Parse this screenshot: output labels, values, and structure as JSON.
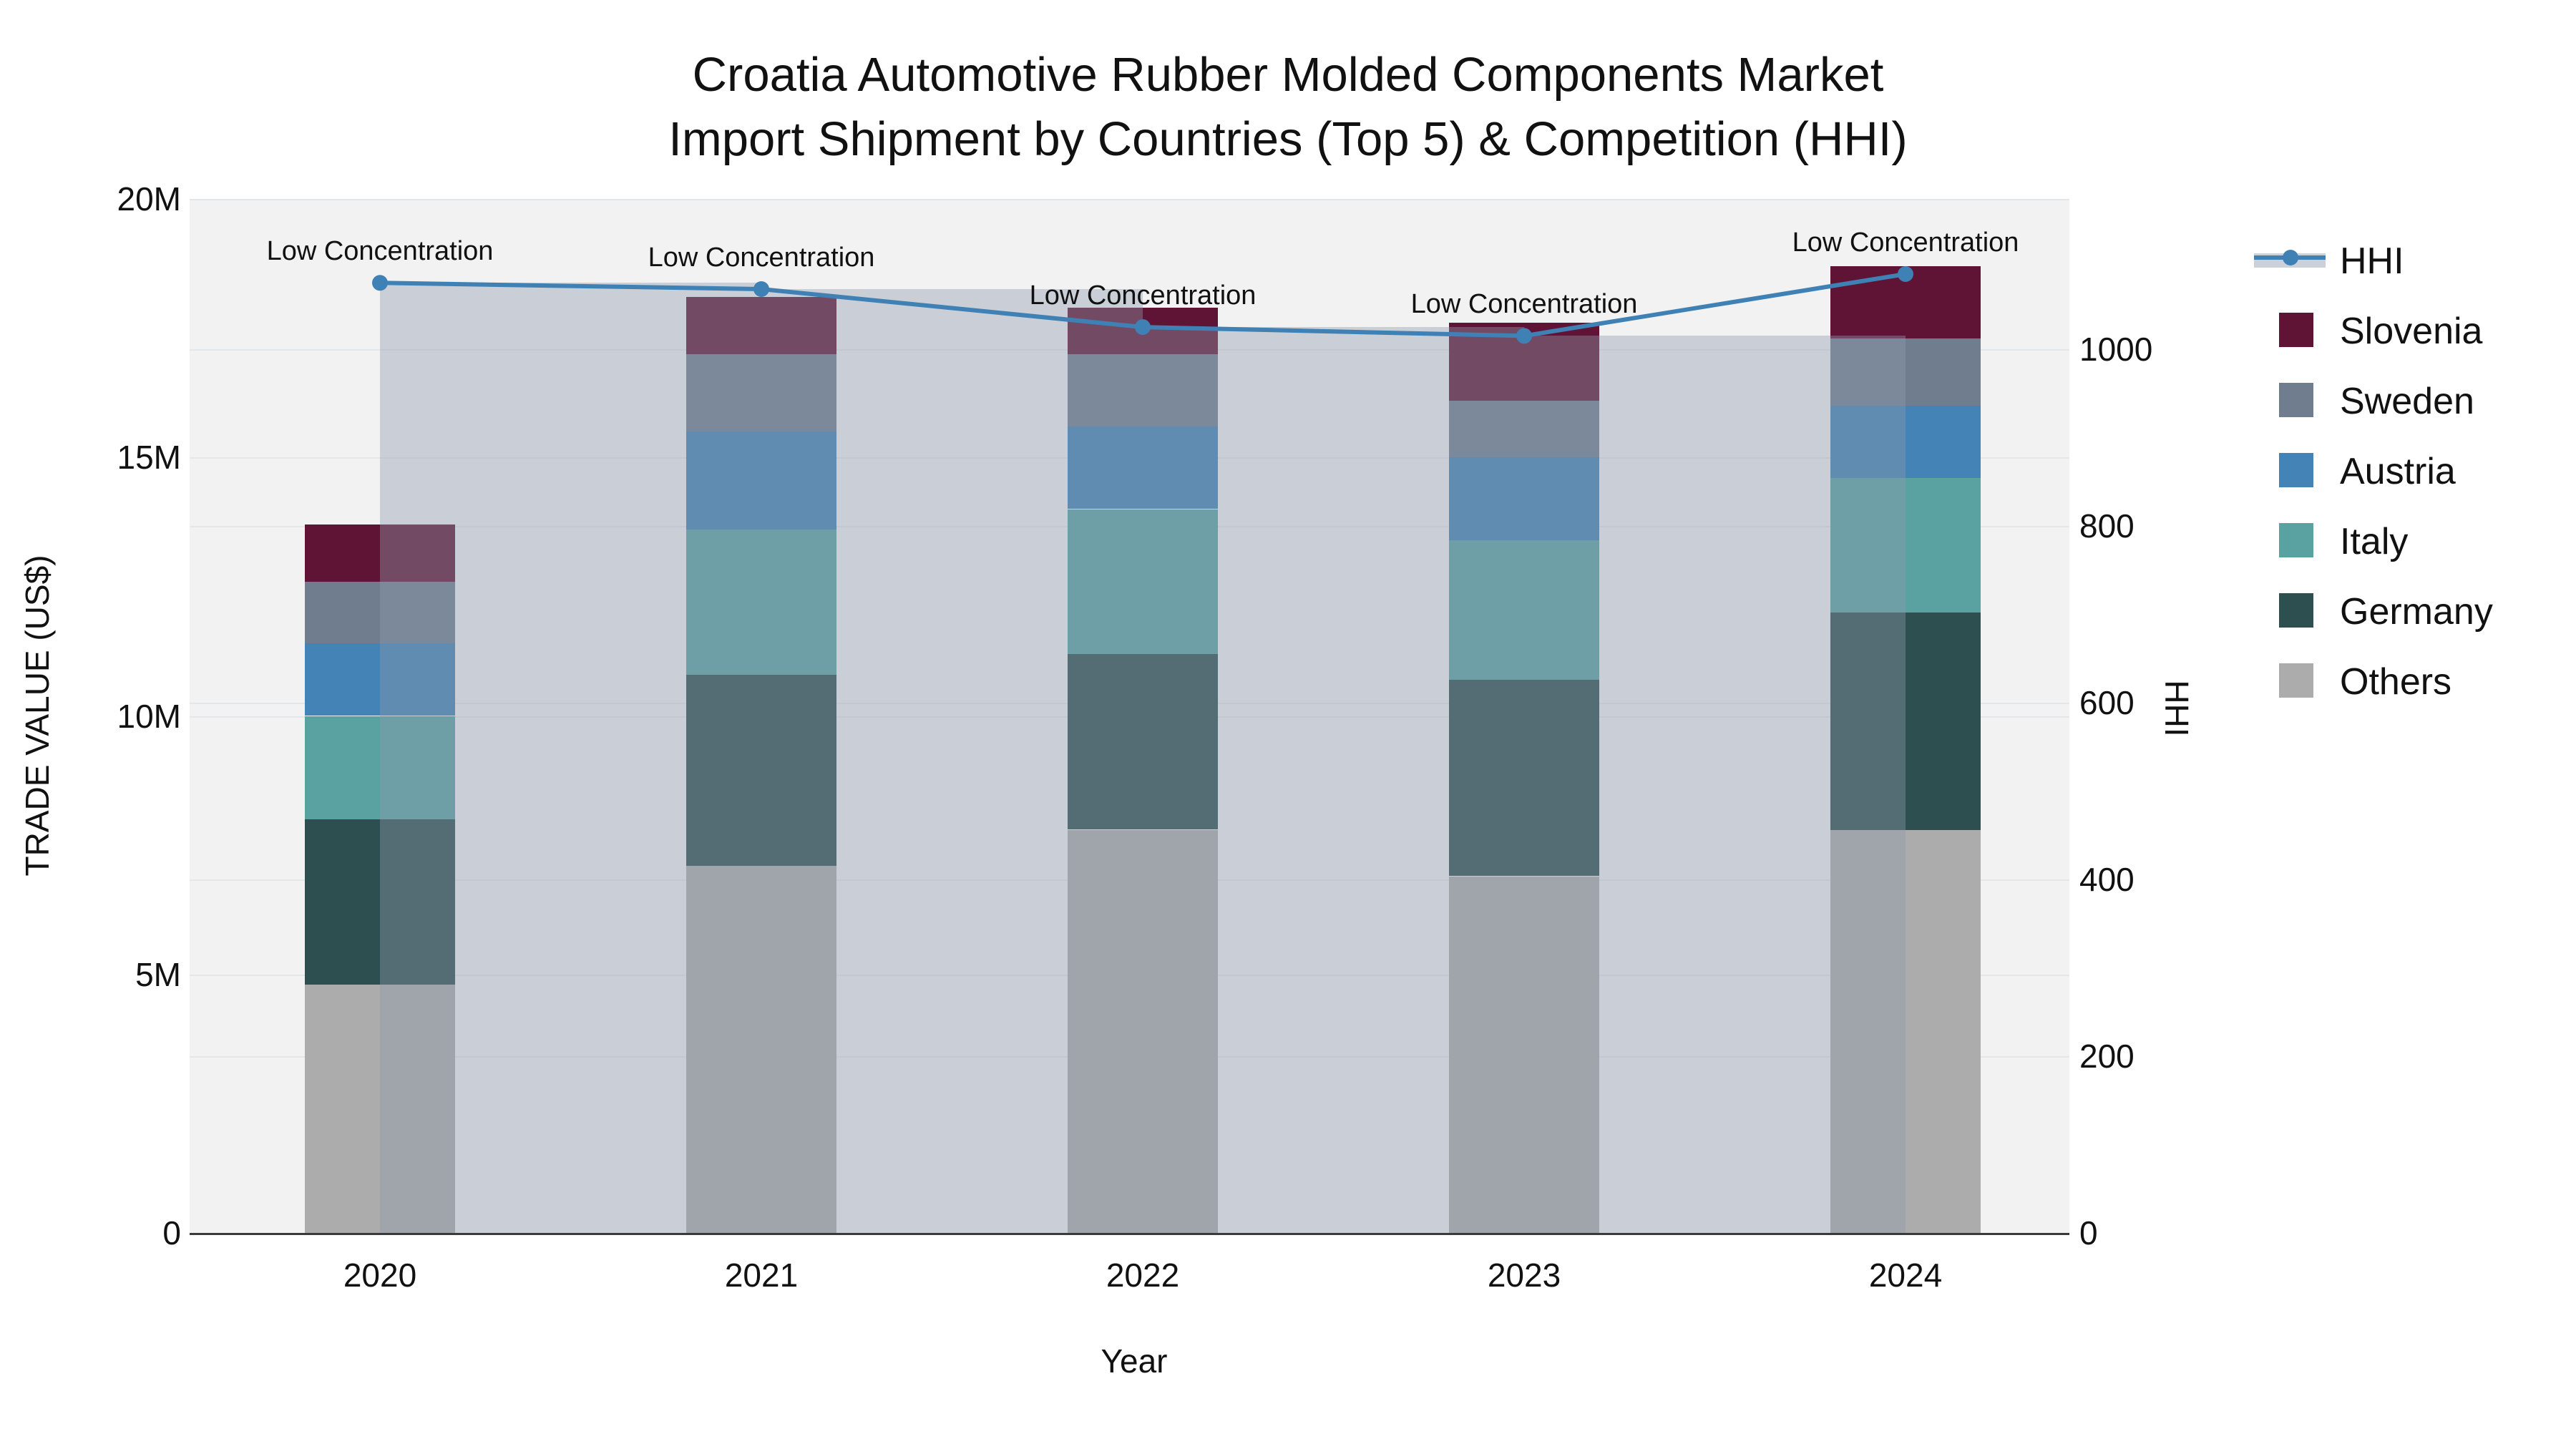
{
  "title": {
    "line1": "Croatia Automotive Rubber Molded Components Market",
    "line2": "Import Shipment by Countries (Top 5) & Competition (HHI)"
  },
  "axes": {
    "y_left_title": "TRADE VALUE (US$)",
    "y_right_title": "HHI",
    "x_title": "Year",
    "y_left_ticks": [
      "0",
      "5M",
      "10M",
      "15M",
      "20M"
    ],
    "y_left_tick_values": [
      0,
      5,
      10,
      15,
      20
    ],
    "y_right_ticks": [
      "0",
      "200",
      "400",
      "600",
      "800",
      "1000"
    ],
    "y_right_tick_values": [
      0,
      200,
      400,
      600,
      800,
      1000
    ],
    "y_left_max": 20,
    "y_right_max": 1170
  },
  "annotation_label": "Low Concentration",
  "colors": {
    "plot_background": "#f2f2f3",
    "gridline": "#e4e7ea",
    "hhi_line": "#3f81b5",
    "hhi_bar_fill": "rgba(143,155,172,0.40)",
    "axis_spine": "#3a3a3a"
  },
  "legend": {
    "items": [
      {
        "label": "HHI",
        "type": "line",
        "color": "#3f81b5"
      },
      {
        "label": "Slovenia",
        "type": "patch",
        "color": "#5f1435"
      },
      {
        "label": "Sweden",
        "type": "patch",
        "color": "#6f7d8e"
      },
      {
        "label": "Austria",
        "type": "patch",
        "color": "#4483b5"
      },
      {
        "label": "Italy",
        "type": "patch",
        "color": "#5aa2a2"
      },
      {
        "label": "Germany",
        "type": "patch",
        "color": "#2e4f4f"
      },
      {
        "label": "Others",
        "type": "patch",
        "color": "#acacac"
      }
    ]
  },
  "chart_data": {
    "type": "bar",
    "subtype": "stacked-bars-with-line",
    "categories": [
      "2020",
      "2021",
      "2022",
      "2023",
      "2024"
    ],
    "unit": "Million US$",
    "stack_order_bottom_to_top": [
      "Others",
      "Germany",
      "Italy",
      "Austria",
      "Sweden",
      "Slovenia"
    ],
    "series": [
      {
        "name": "Others",
        "color": "#acacac",
        "values": [
          4.8,
          7.1,
          7.8,
          6.9,
          7.8
        ]
      },
      {
        "name": "Germany",
        "color": "#2e4f4f",
        "values": [
          3.2,
          3.7,
          3.4,
          3.8,
          4.2
        ]
      },
      {
        "name": "Italy",
        "color": "#5aa2a2",
        "values": [
          2.0,
          2.8,
          2.8,
          2.7,
          2.6
        ]
      },
      {
        "name": "Austria",
        "color": "#4483b5",
        "values": [
          1.4,
          1.9,
          1.6,
          1.6,
          1.4
        ]
      },
      {
        "name": "Sweden",
        "color": "#6f7d8e",
        "values": [
          1.2,
          1.5,
          1.4,
          1.1,
          1.3
        ]
      },
      {
        "name": "Slovenia",
        "color": "#5f1435",
        "values": [
          1.1,
          1.1,
          0.9,
          1.5,
          1.4
        ]
      }
    ],
    "totals": [
      13.7,
      18.1,
      17.9,
      17.6,
      18.7
    ],
    "line_series": {
      "name": "HHI",
      "values": [
        1075,
        1068,
        1025,
        1015,
        1085
      ],
      "axis": "right",
      "bars_shown_for": [
        "2020",
        "2021",
        "2022",
        "2023"
      ]
    },
    "ylabel_left": "TRADE VALUE (US$)",
    "ylabel_right": "HHI",
    "xlabel": "Year",
    "ylim_left": [
      0,
      20
    ],
    "grid": true,
    "legend_position": "right"
  }
}
